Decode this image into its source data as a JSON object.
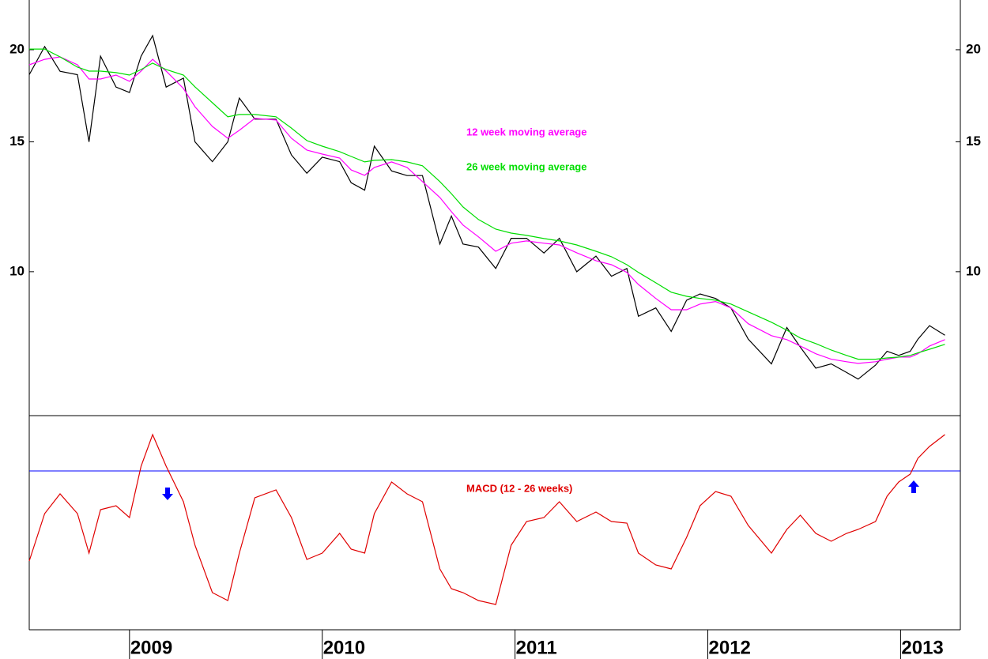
{
  "chart_data": [
    {
      "type": "line",
      "log_scale": true,
      "x": [
        2008.48,
        2008.56,
        2008.64,
        2008.73,
        2008.79,
        2008.85,
        2008.93,
        2009.0,
        2009.06,
        2009.12,
        2009.19,
        2009.28,
        2009.34,
        2009.43,
        2009.51,
        2009.57,
        2009.65,
        2009.76,
        2009.84,
        2009.92,
        2010.0,
        2010.09,
        2010.15,
        2010.22,
        2010.27,
        2010.36,
        2010.44,
        2010.52,
        2010.61,
        2010.67,
        2010.73,
        2010.81,
        2010.9,
        2010.98,
        2011.06,
        2011.15,
        2011.23,
        2011.32,
        2011.42,
        2011.5,
        2011.58,
        2011.64,
        2011.73,
        2011.81,
        2011.89,
        2011.96,
        2012.04,
        2012.12,
        2012.21,
        2012.33,
        2012.41,
        2012.48,
        2012.56,
        2012.64,
        2012.72,
        2012.78,
        2012.87,
        2012.93,
        2012.99,
        2013.05,
        2013.09,
        2013.15,
        2013.23
      ],
      "series": [
        {
          "color": "#000000",
          "values": [
            18.5,
            20.2,
            18.7,
            18.5,
            15.0,
            19.6,
            17.8,
            17.5,
            19.6,
            20.9,
            17.8,
            18.3,
            15.0,
            14.1,
            15.0,
            17.2,
            16.1,
            16.1,
            14.4,
            13.6,
            14.3,
            14.1,
            13.2,
            12.9,
            14.8,
            13.7,
            13.5,
            13.5,
            10.9,
            11.9,
            10.9,
            10.8,
            10.1,
            11.1,
            11.1,
            10.6,
            11.1,
            10.0,
            10.5,
            9.86,
            10.1,
            8.7,
            8.93,
            8.3,
            9.15,
            9.33,
            9.2,
            8.93,
            8.1,
            7.5,
            8.4,
            7.9,
            7.4,
            7.5,
            7.3,
            7.15,
            7.47,
            7.8,
            7.7,
            7.8,
            8.1,
            8.45,
            8.2
          ]
        },
        {
          "name": "12 week moving average",
          "color": "#ff00ff",
          "values": [
            19.08,
            19.41,
            19.56,
            19.08,
            18.25,
            18.25,
            18.48,
            18.12,
            18.71,
            19.41,
            18.71,
            17.72,
            16.74,
            15.74,
            15.17,
            15.55,
            16.14,
            16.06,
            15.17,
            14.62,
            14.44,
            14.26,
            13.74,
            13.51,
            13.85,
            14.09,
            13.85,
            13.25,
            12.61,
            12.06,
            11.57,
            11.15,
            10.66,
            10.93,
            11.01,
            10.93,
            10.87,
            10.61,
            10.35,
            10.22,
            9.98,
            9.61,
            9.2,
            8.88,
            8.88,
            9.04,
            9.11,
            8.93,
            8.5,
            8.19,
            8.09,
            7.93,
            7.74,
            7.61,
            7.55,
            7.51,
            7.55,
            7.61,
            7.66,
            7.66,
            7.74,
            7.93,
            8.09
          ]
        },
        {
          "name": "26 week moving average",
          "color": "#00dd00",
          "values": [
            20.04,
            20.04,
            19.56,
            18.94,
            18.71,
            18.71,
            18.62,
            18.48,
            18.8,
            19.18,
            18.8,
            18.48,
            17.81,
            16.95,
            16.22,
            16.34,
            16.34,
            16.22,
            15.66,
            15.06,
            14.8,
            14.55,
            14.33,
            14.09,
            14.16,
            14.19,
            14.09,
            13.92,
            13.25,
            12.76,
            12.24,
            11.77,
            11.42,
            11.28,
            11.2,
            11.09,
            11.01,
            10.87,
            10.66,
            10.48,
            10.22,
            9.98,
            9.66,
            9.38,
            9.26,
            9.2,
            9.15,
            9.04,
            8.82,
            8.54,
            8.33,
            8.13,
            7.99,
            7.83,
            7.7,
            7.61,
            7.61,
            7.64,
            7.66,
            7.7,
            7.76,
            7.85,
            7.97
          ]
        }
      ],
      "xlim": [
        2008.48,
        2013.31
      ],
      "ylim": [
        6.38,
        23.36
      ],
      "yticks": [
        10,
        15,
        20
      ]
    },
    {
      "type": "line",
      "x": [
        2008.48,
        2008.56,
        2008.64,
        2008.73,
        2008.79,
        2008.85,
        2008.93,
        2009.0,
        2009.06,
        2009.12,
        2009.19,
        2009.28,
        2009.34,
        2009.43,
        2009.51,
        2009.57,
        2009.65,
        2009.76,
        2009.84,
        2009.92,
        2010.0,
        2010.09,
        2010.15,
        2010.22,
        2010.27,
        2010.36,
        2010.44,
        2010.52,
        2010.61,
        2010.67,
        2010.73,
        2010.81,
        2010.9,
        2010.98,
        2011.06,
        2011.15,
        2011.23,
        2011.32,
        2011.42,
        2011.5,
        2011.58,
        2011.64,
        2011.73,
        2011.81,
        2011.89,
        2011.96,
        2012.04,
        2012.12,
        2012.21,
        2012.33,
        2012.41,
        2012.48,
        2012.56,
        2012.64,
        2012.72,
        2012.78,
        2012.87,
        2012.93,
        2012.99,
        2013.05,
        2013.09,
        2013.15,
        2013.23
      ],
      "series": [
        {
          "name": "MACD (12 - 26 weeks)",
          "color": "#e00000",
          "values": [
            -1.14,
            -0.54,
            -0.29,
            -0.54,
            -1.04,
            -0.49,
            -0.44,
            -0.59,
            0.06,
            0.46,
            0.06,
            -0.39,
            -0.94,
            -1.54,
            -1.64,
            -1.04,
            -0.34,
            -0.24,
            -0.59,
            -1.12,
            -1.04,
            -0.79,
            -0.99,
            -1.04,
            -0.54,
            -0.14,
            -0.29,
            -0.39,
            -1.24,
            -1.49,
            -1.54,
            -1.64,
            -1.69,
            -0.94,
            -0.64,
            -0.59,
            -0.39,
            -0.64,
            -0.52,
            -0.64,
            -0.66,
            -1.04,
            -1.19,
            -1.24,
            -0.84,
            -0.44,
            -0.26,
            -0.32,
            -0.69,
            -1.04,
            -0.74,
            -0.56,
            -0.79,
            -0.89,
            -0.79,
            -0.74,
            -0.64,
            -0.32,
            -0.14,
            -0.04,
            0.16,
            0.31,
            0.46
          ]
        }
      ],
      "xlim": [
        2008.48,
        2013.31
      ],
      "ylim": [
        -2.01,
        0.7
      ],
      "xticks": [
        2009,
        2010,
        2011,
        2012,
        2013
      ]
    }
  ]
}
